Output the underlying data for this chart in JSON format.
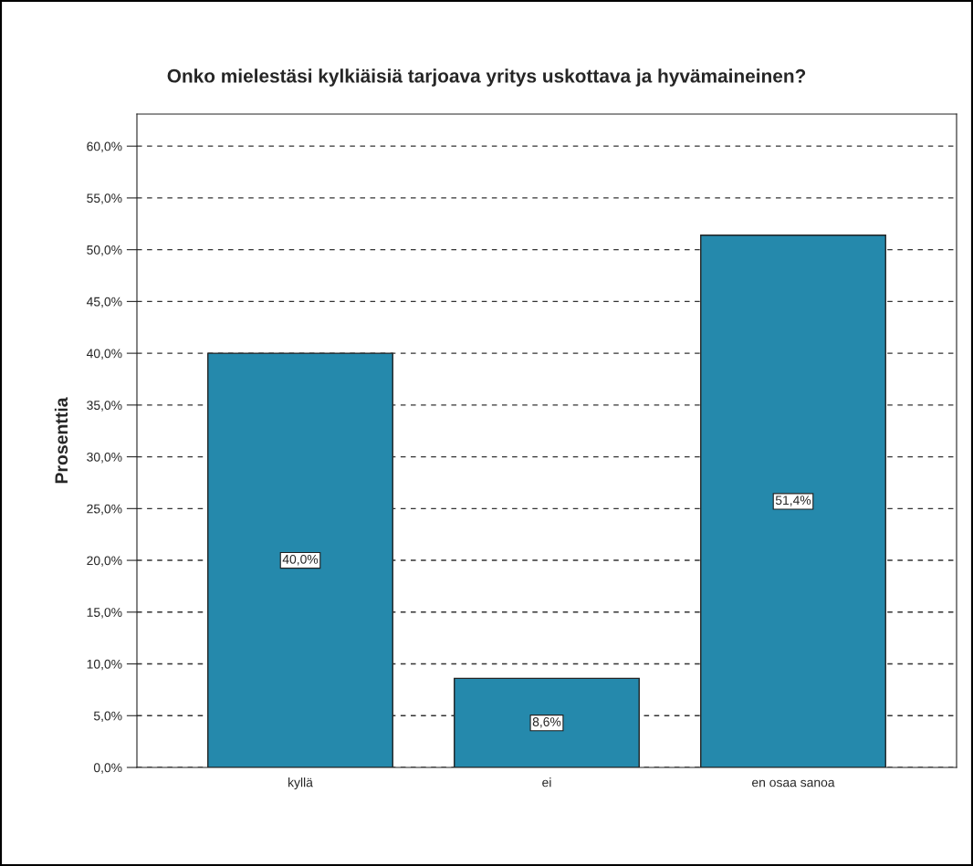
{
  "chart_data": {
    "type": "bar",
    "title": "Onko mielestäsi kylkiäisiä tarjoava yritys uskottava ja hyvämaineinen?",
    "ylabel": "Prosenttia",
    "categories": [
      "kyllä",
      "ei",
      "en osaa sanoa"
    ],
    "values": [
      40.0,
      8.6,
      51.4
    ],
    "value_labels": [
      "40,0%",
      "8,6%",
      "51,4%"
    ],
    "color": "#2589ac",
    "ylim": [
      0,
      63.1
    ],
    "yticks": [
      {
        "value": 0,
        "label": "0,0%"
      },
      {
        "value": 5,
        "label": "5,0%"
      },
      {
        "value": 10,
        "label": "10,0%"
      },
      {
        "value": 15,
        "label": "15,0%"
      },
      {
        "value": 20,
        "label": "20,0%"
      },
      {
        "value": 25,
        "label": "25,0%"
      },
      {
        "value": 30,
        "label": "30,0%"
      },
      {
        "value": 35,
        "label": "35,0%"
      },
      {
        "value": 40,
        "label": "40,0%"
      },
      {
        "value": 45,
        "label": "45,0%"
      },
      {
        "value": 50,
        "label": "50,0%"
      },
      {
        "value": 55,
        "label": "55,0%"
      },
      {
        "value": 60,
        "label": "60,0%"
      }
    ],
    "grid": "y",
    "line_style": "dashed"
  }
}
